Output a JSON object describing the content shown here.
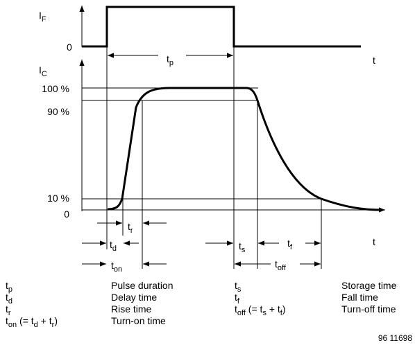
{
  "top_plot": {
    "y_label": [
      {
        "text": "I"
      },
      {
        "sub": "F"
      }
    ],
    "zero_label": "0",
    "time_label": "t",
    "pulse_label": [
      {
        "text": "t"
      },
      {
        "sub": "p"
      }
    ]
  },
  "bottom_plot": {
    "y_label": [
      {
        "text": "I"
      },
      {
        "sub": "C"
      }
    ],
    "levels": [
      "100 %",
      "90 %",
      "10 %",
      "0"
    ],
    "time_label": "t",
    "intervals": {
      "rise": [
        {
          "text": "t"
        },
        {
          "sub": "r"
        }
      ],
      "delay": [
        {
          "text": "t"
        },
        {
          "sub": "d"
        }
      ],
      "turn_on": [
        {
          "text": "t"
        },
        {
          "sub": "on"
        }
      ],
      "storage": [
        {
          "text": "t"
        },
        {
          "sub": "s"
        }
      ],
      "fall": [
        {
          "text": "t"
        },
        {
          "sub": "f"
        }
      ],
      "turn_off": [
        {
          "text": "t"
        },
        {
          "sub": "off"
        }
      ]
    }
  },
  "legend": [
    {
      "symbol": [
        {
          "text": "t"
        },
        {
          "sub": "p"
        }
      ],
      "description": "Pulse duration"
    },
    {
      "symbol": [
        {
          "text": "t"
        },
        {
          "sub": "d"
        }
      ],
      "description": "Delay time"
    },
    {
      "symbol": [
        {
          "text": "t"
        },
        {
          "sub": "r"
        }
      ],
      "description": "Rise time"
    },
    {
      "symbol": [
        {
          "text": "t"
        },
        {
          "sub": "on"
        },
        {
          "text": " (= t"
        },
        {
          "sub": "d"
        },
        {
          "text": " + t"
        },
        {
          "sub": "r"
        },
        {
          "text": ")"
        }
      ],
      "description": "Turn-on time"
    },
    {
      "symbol": [
        {
          "text": "t"
        },
        {
          "sub": "s"
        }
      ],
      "description": "Storage time"
    },
    {
      "symbol": [
        {
          "text": "t"
        },
        {
          "sub": "f"
        }
      ],
      "description": "Fall time"
    },
    {
      "symbol": [
        {
          "text": "t"
        },
        {
          "sub": "off"
        },
        {
          "text": " (= t"
        },
        {
          "sub": "s"
        },
        {
          "text": " + t"
        },
        {
          "sub": "f"
        },
        {
          "text": ")"
        }
      ],
      "description": "Turn-off time"
    }
  ],
  "figure_id": "96 11698"
}
